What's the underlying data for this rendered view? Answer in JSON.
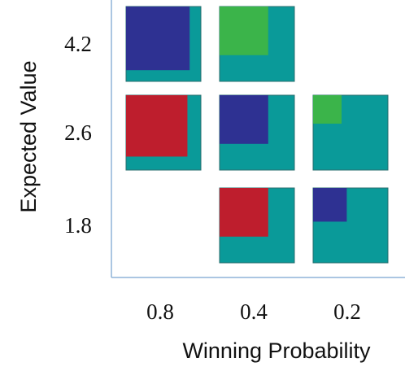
{
  "chart_data": {
    "type": "heatmap",
    "xlabel": "Winning Probability",
    "ylabel": "Expected Value",
    "x_ticks": [
      "0.8",
      "0.4",
      "0.2"
    ],
    "y_ticks": [
      "4.2",
      "2.6",
      "1.8"
    ],
    "background_color": "#0A9A99",
    "cells": [
      {
        "x": "0.8",
        "y": "4.2",
        "inner_fraction": 0.85,
        "inner_color": "#2E3192"
      },
      {
        "x": "0.4",
        "y": "4.2",
        "inner_fraction": 0.65,
        "inner_color": "#3BB44A"
      },
      {
        "x": "0.8",
        "y": "2.6",
        "inner_fraction": 0.82,
        "inner_color": "#BE1E2D"
      },
      {
        "x": "0.4",
        "y": "2.6",
        "inner_fraction": 0.65,
        "inner_color": "#2E3192"
      },
      {
        "x": "0.2",
        "y": "2.6",
        "inner_fraction": 0.38,
        "inner_color": "#3BB44A"
      },
      {
        "x": "0.4",
        "y": "1.8",
        "inner_fraction": 0.65,
        "inner_color": "#BE1E2D"
      },
      {
        "x": "0.2",
        "y": "1.8",
        "inner_fraction": 0.45,
        "inner_color": "#2E3192"
      }
    ],
    "axis_color": "#8FB4D8"
  }
}
